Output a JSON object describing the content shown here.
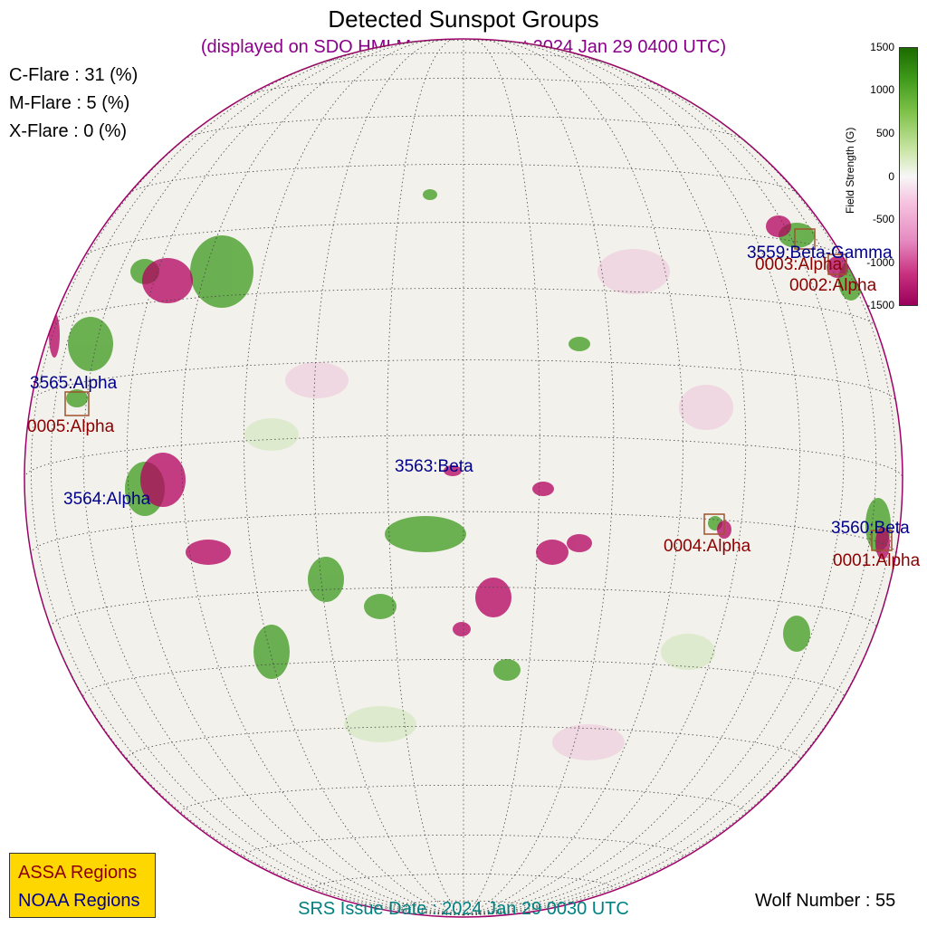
{
  "title": "Detected Sunspot Groups",
  "subtitle": "(displayed on SDO HMI Magnetogram at 2024 Jan 29 0400 UTC)",
  "flare_probabilities": {
    "c": "C-Flare : 31 (%)",
    "m": "M-Flare :  5 (%)",
    "x": "X-Flare :  0 (%)"
  },
  "regions": {
    "noaa": [
      {
        "label": "3559:Beta-Gamma"
      },
      {
        "label": "3565:Alpha"
      },
      {
        "label": "3563:Beta"
      },
      {
        "label": "3564:Alpha"
      },
      {
        "label": "3560:Beta"
      }
    ],
    "assa": [
      {
        "label": "0003:Alpha"
      },
      {
        "label": "0002:Alpha"
      },
      {
        "label": "0005:Alpha"
      },
      {
        "label": "0004:Alpha"
      },
      {
        "label": "0001:Alpha"
      }
    ]
  },
  "colorbar": {
    "label": "Field Strength (G)",
    "ticks": [
      "1500",
      "1000",
      "500",
      "0",
      "-500",
      "-1000",
      "-1500"
    ],
    "colors": {
      "positive": "#2e8b1a",
      "negative": "#b0005f",
      "neutral": "#f3f1ec"
    }
  },
  "legend": {
    "assa": "ASSA Regions",
    "noaa": "NOAA Regions",
    "colors": {
      "assa": "#8b0000",
      "noaa": "#00008b",
      "background": "#ffd700"
    }
  },
  "footer": {
    "srs": "SRS Issue Date : 2024 Jan 29 0030 UTC",
    "wolf": "Wolf Number : 55"
  }
}
